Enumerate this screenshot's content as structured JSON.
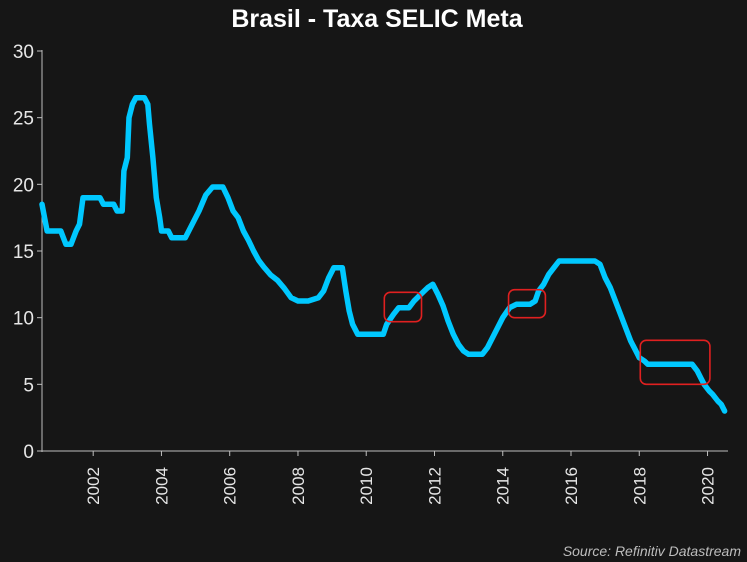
{
  "chart_data": {
    "type": "line",
    "title": "Brasil - Taxa SELIC Meta",
    "source": "Source: Refinitiv Datastream",
    "xlabel": "",
    "ylabel": "",
    "xlim": [
      2000.5,
      2020.6
    ],
    "ylim": [
      0,
      30
    ],
    "y_ticks": [
      0,
      5,
      10,
      15,
      20,
      25,
      30
    ],
    "x_ticks": [
      2002,
      2004,
      2006,
      2008,
      2010,
      2012,
      2014,
      2016,
      2018,
      2020
    ],
    "grid": false,
    "legend": "none",
    "line_color": "#00c8ff",
    "highlight_color": "#e02020",
    "series": [
      {
        "values": [
          [
            2000.5,
            18.5
          ],
          [
            2000.65,
            16.5
          ],
          [
            2000.9,
            16.5
          ],
          [
            2001.05,
            16.5
          ],
          [
            2001.2,
            15.5
          ],
          [
            2001.35,
            15.5
          ],
          [
            2001.5,
            16.5
          ],
          [
            2001.6,
            17.0
          ],
          [
            2001.7,
            19.0
          ],
          [
            2002.0,
            19.0
          ],
          [
            2002.2,
            19.0
          ],
          [
            2002.3,
            18.5
          ],
          [
            2002.6,
            18.5
          ],
          [
            2002.7,
            18.0
          ],
          [
            2002.85,
            18.0
          ],
          [
            2002.9,
            21.0
          ],
          [
            2003.0,
            22.0
          ],
          [
            2003.05,
            25.0
          ],
          [
            2003.15,
            26.0
          ],
          [
            2003.25,
            26.5
          ],
          [
            2003.5,
            26.5
          ],
          [
            2003.6,
            26.0
          ],
          [
            2003.65,
            24.5
          ],
          [
            2003.75,
            22.0
          ],
          [
            2003.85,
            19.0
          ],
          [
            2003.95,
            17.5
          ],
          [
            2004.0,
            16.5
          ],
          [
            2004.2,
            16.5
          ],
          [
            2004.3,
            16.0
          ],
          [
            2004.7,
            16.0
          ],
          [
            2004.9,
            17.0
          ],
          [
            2005.1,
            18.0
          ],
          [
            2005.3,
            19.2
          ],
          [
            2005.5,
            19.8
          ],
          [
            2005.8,
            19.8
          ],
          [
            2005.95,
            19.0
          ],
          [
            2006.1,
            18.0
          ],
          [
            2006.25,
            17.5
          ],
          [
            2006.4,
            16.5
          ],
          [
            2006.55,
            15.8
          ],
          [
            2006.7,
            15.0
          ],
          [
            2006.85,
            14.3
          ],
          [
            2007.0,
            13.8
          ],
          [
            2007.2,
            13.2
          ],
          [
            2007.4,
            12.8
          ],
          [
            2007.6,
            12.2
          ],
          [
            2007.8,
            11.5
          ],
          [
            2008.0,
            11.25
          ],
          [
            2008.3,
            11.25
          ],
          [
            2008.6,
            11.5
          ],
          [
            2008.75,
            12.0
          ],
          [
            2008.9,
            13.0
          ],
          [
            2009.05,
            13.75
          ],
          [
            2009.3,
            13.75
          ],
          [
            2009.4,
            12.0
          ],
          [
            2009.5,
            10.5
          ],
          [
            2009.6,
            9.5
          ],
          [
            2009.75,
            8.75
          ],
          [
            2010.25,
            8.75
          ],
          [
            2010.5,
            8.75
          ],
          [
            2010.6,
            9.5
          ],
          [
            2010.8,
            10.25
          ],
          [
            2010.95,
            10.75
          ],
          [
            2011.25,
            10.75
          ],
          [
            2011.4,
            11.25
          ],
          [
            2011.6,
            11.75
          ],
          [
            2011.8,
            12.25
          ],
          [
            2011.95,
            12.5
          ],
          [
            2012.1,
            11.75
          ],
          [
            2012.25,
            10.9
          ],
          [
            2012.4,
            9.75
          ],
          [
            2012.55,
            8.75
          ],
          [
            2012.7,
            8.0
          ],
          [
            2012.85,
            7.5
          ],
          [
            2013.0,
            7.25
          ],
          [
            2013.4,
            7.25
          ],
          [
            2013.55,
            7.75
          ],
          [
            2013.7,
            8.5
          ],
          [
            2013.85,
            9.25
          ],
          [
            2014.0,
            10.0
          ],
          [
            2014.2,
            10.75
          ],
          [
            2014.4,
            11.0
          ],
          [
            2014.8,
            11.0
          ],
          [
            2014.95,
            11.25
          ],
          [
            2015.05,
            12.0
          ],
          [
            2015.2,
            12.5
          ],
          [
            2015.35,
            13.25
          ],
          [
            2015.5,
            13.75
          ],
          [
            2015.65,
            14.25
          ],
          [
            2016.0,
            14.25
          ],
          [
            2016.4,
            14.25
          ],
          [
            2016.7,
            14.25
          ],
          [
            2016.85,
            14.0
          ],
          [
            2017.0,
            13.0
          ],
          [
            2017.15,
            12.25
          ],
          [
            2017.3,
            11.25
          ],
          [
            2017.45,
            10.25
          ],
          [
            2017.6,
            9.25
          ],
          [
            2017.75,
            8.25
          ],
          [
            2017.9,
            7.5
          ],
          [
            2018.0,
            7.0
          ],
          [
            2018.15,
            6.75
          ],
          [
            2018.25,
            6.5
          ],
          [
            2019.0,
            6.5
          ],
          [
            2019.55,
            6.5
          ],
          [
            2019.7,
            6.0
          ],
          [
            2019.8,
            5.5
          ],
          [
            2019.9,
            5.0
          ],
          [
            2020.05,
            4.5
          ],
          [
            2020.15,
            4.25
          ],
          [
            2020.3,
            3.75
          ],
          [
            2020.4,
            3.5
          ],
          [
            2020.5,
            3.0
          ]
        ]
      }
    ],
    "highlights": [
      {
        "x0": 2010.53,
        "x1": 2011.62,
        "y0": 9.7,
        "y1": 11.9
      },
      {
        "x0": 2014.17,
        "x1": 2015.25,
        "y0": 10.0,
        "y1": 12.1
      },
      {
        "x0": 2018.03,
        "x1": 2020.07,
        "y0": 5.0,
        "y1": 8.3
      }
    ]
  }
}
